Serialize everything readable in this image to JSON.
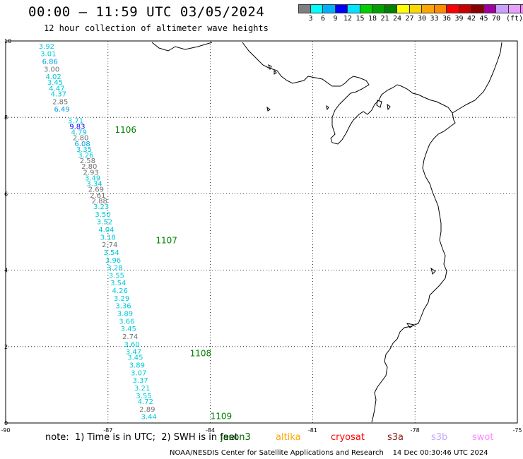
{
  "header": {
    "title": "00:00 – 11:59 UTC 03/05/2024",
    "subtitle": "12 hour collection of altimeter wave heights"
  },
  "colorbar": {
    "colors": [
      "#7f7f7f",
      "#00ffff",
      "#00b0ff",
      "#0000ff",
      "#00e4ff",
      "#00d000",
      "#00a000",
      "#008000",
      "#ffff00",
      "#ffd700",
      "#ffa500",
      "#ff8c00",
      "#ff0000",
      "#c80000",
      "#8b0000",
      "#a000a0",
      "#c8a0ff",
      "#e6a0ff",
      "#ff80ff",
      "#000000"
    ],
    "ticks": [
      "3",
      "6",
      "9",
      "12",
      "15",
      "18",
      "21",
      "24",
      "27",
      "30",
      "33",
      "36",
      "39",
      "42",
      "45",
      "70"
    ],
    "unit": "(ft)"
  },
  "map": {
    "xlim": [
      -90,
      -75
    ],
    "ylim": [
      0,
      10
    ],
    "x_ticks": [
      "-90",
      "-87",
      "-84",
      "-81",
      "-78",
      "-75"
    ],
    "y_ticks": [
      "0",
      "2",
      "4",
      "6",
      "8",
      "10"
    ],
    "grid": true,
    "track": {
      "points": [
        {
          "lon": -88.8,
          "lat": 9.8,
          "value": "3.92",
          "color": "#00c8d8"
        },
        {
          "lon": -88.75,
          "lat": 9.6,
          "value": "3.01",
          "color": "#00c8d8"
        },
        {
          "lon": -88.7,
          "lat": 9.4,
          "value": "6.86",
          "color": "#00a0e0"
        },
        {
          "lon": -88.65,
          "lat": 9.2,
          "value": "3.00",
          "color": "#707070"
        },
        {
          "lon": -88.6,
          "lat": 9.0,
          "value": "4.02",
          "color": "#00c8d8"
        },
        {
          "lon": -88.55,
          "lat": 8.85,
          "value": "3.45",
          "color": "#00c8d8"
        },
        {
          "lon": -88.5,
          "lat": 8.7,
          "value": "4.47",
          "color": "#00c8d8"
        },
        {
          "lon": -88.45,
          "lat": 8.55,
          "value": "4.37",
          "color": "#00c8d8"
        },
        {
          "lon": -88.4,
          "lat": 8.35,
          "value": "2.85",
          "color": "#707070"
        },
        {
          "lon": -88.35,
          "lat": 8.15,
          "value": "6.49",
          "color": "#00a0e0"
        },
        {
          "lon": -87.95,
          "lat": 7.85,
          "value": "3.71",
          "color": "#00c8d8"
        },
        {
          "lon": -87.9,
          "lat": 7.7,
          "value": "9.83",
          "color": "#0000ff"
        },
        {
          "lon": -87.85,
          "lat": 7.55,
          "value": "4.79",
          "color": "#00c8d8"
        },
        {
          "lon": -87.8,
          "lat": 7.4,
          "value": "2.80",
          "color": "#707070"
        },
        {
          "lon": -87.75,
          "lat": 7.25,
          "value": "6.08",
          "color": "#00a0e0"
        },
        {
          "lon": -87.7,
          "lat": 7.1,
          "value": "3.35",
          "color": "#00c8d8"
        },
        {
          "lon": -87.65,
          "lat": 6.95,
          "value": "3.26",
          "color": "#00c8d8"
        },
        {
          "lon": -87.6,
          "lat": 6.8,
          "value": "2.58",
          "color": "#707070"
        },
        {
          "lon": -87.55,
          "lat": 6.65,
          "value": "2.80",
          "color": "#707070"
        },
        {
          "lon": -87.5,
          "lat": 6.5,
          "value": "2.93",
          "color": "#707070"
        },
        {
          "lon": -87.45,
          "lat": 6.35,
          "value": "3.49",
          "color": "#00c8d8"
        },
        {
          "lon": -87.4,
          "lat": 6.2,
          "value": "3.34",
          "color": "#00c8d8"
        },
        {
          "lon": -87.35,
          "lat": 6.05,
          "value": "2.69",
          "color": "#707070"
        },
        {
          "lon": -87.3,
          "lat": 5.9,
          "value": "2.61",
          "color": "#707070"
        },
        {
          "lon": -87.25,
          "lat": 5.75,
          "value": "2.88",
          "color": "#707070"
        },
        {
          "lon": -87.2,
          "lat": 5.6,
          "value": "3.23",
          "color": "#00c8d8"
        },
        {
          "lon": -87.15,
          "lat": 5.4,
          "value": "3.50",
          "color": "#00c8d8"
        },
        {
          "lon": -87.1,
          "lat": 5.2,
          "value": "3.52",
          "color": "#00c8d8"
        },
        {
          "lon": -87.05,
          "lat": 5.0,
          "value": "4.04",
          "color": "#00c8d8"
        },
        {
          "lon": -87.0,
          "lat": 4.8,
          "value": "3.18",
          "color": "#00c8d8"
        },
        {
          "lon": -86.95,
          "lat": 4.6,
          "value": "2.74",
          "color": "#707070"
        },
        {
          "lon": -86.9,
          "lat": 4.4,
          "value": "3.54",
          "color": "#00c8d8"
        },
        {
          "lon": -86.85,
          "lat": 4.2,
          "value": "3.96",
          "color": "#00c8d8"
        },
        {
          "lon": -86.8,
          "lat": 4.0,
          "value": "3.28",
          "color": "#00c8d8"
        },
        {
          "lon": -86.75,
          "lat": 3.8,
          "value": "3.55",
          "color": "#00c8d8"
        },
        {
          "lon": -86.7,
          "lat": 3.6,
          "value": "3.54",
          "color": "#00c8d8"
        },
        {
          "lon": -86.65,
          "lat": 3.4,
          "value": "4.26",
          "color": "#00c8d8"
        },
        {
          "lon": -86.6,
          "lat": 3.2,
          "value": "3.29",
          "color": "#00c8d8"
        },
        {
          "lon": -86.55,
          "lat": 3.0,
          "value": "3.36",
          "color": "#00c8d8"
        },
        {
          "lon": -86.5,
          "lat": 2.8,
          "value": "3.89",
          "color": "#00c8d8"
        },
        {
          "lon": -86.45,
          "lat": 2.6,
          "value": "3.66",
          "color": "#00c8d8"
        },
        {
          "lon": -86.4,
          "lat": 2.4,
          "value": "3.45",
          "color": "#00c8d8"
        },
        {
          "lon": -86.35,
          "lat": 2.2,
          "value": "2.74",
          "color": "#707070"
        },
        {
          "lon": -86.3,
          "lat": 2.0,
          "value": "3.60",
          "color": "#00c8d8"
        },
        {
          "lon": -86.25,
          "lat": 1.8,
          "value": "3.47",
          "color": "#00c8d8"
        },
        {
          "lon": -86.2,
          "lat": 1.65,
          "value": "3.45",
          "color": "#00c8d8"
        },
        {
          "lon": -86.15,
          "lat": 1.45,
          "value": "3.89",
          "color": "#00c8d8"
        },
        {
          "lon": -86.1,
          "lat": 1.25,
          "value": "3.07",
          "color": "#00c8d8"
        },
        {
          "lon": -86.05,
          "lat": 1.05,
          "value": "3.37",
          "color": "#00c8d8"
        },
        {
          "lon": -86.0,
          "lat": 0.85,
          "value": "3.21",
          "color": "#00c8d8"
        },
        {
          "lon": -85.95,
          "lat": 0.65,
          "value": "3.55",
          "color": "#00c8d8"
        },
        {
          "lon": -85.9,
          "lat": 0.5,
          "value": "4.72",
          "color": "#00c8d8"
        },
        {
          "lon": -85.85,
          "lat": 0.3,
          "value": "2.89",
          "color": "#707070"
        },
        {
          "lon": -85.8,
          "lat": 0.1,
          "value": "3.44",
          "color": "#00c8d8"
        }
      ],
      "times": [
        {
          "lon": -86.8,
          "lat": 7.6,
          "label": "1106"
        },
        {
          "lon": -85.6,
          "lat": 4.7,
          "label": "1107"
        },
        {
          "lon": -84.6,
          "lat": 1.75,
          "label": "1108"
        },
        {
          "lon": -84.0,
          "lat": 0.1,
          "label": "1109"
        }
      ],
      "time_color": "#008000"
    }
  },
  "footer": {
    "note": "note:  1) Time is in UTC;  2) SWH is in feet",
    "legend": [
      {
        "label": "jason3",
        "color": "#006400"
      },
      {
        "label": "altika",
        "color": "#ffa500"
      },
      {
        "label": "cryosat",
        "color": "#ff0000"
      },
      {
        "label": "s3a",
        "color": "#8b1a1a"
      },
      {
        "label": "s3b",
        "color": "#c0a8ff"
      },
      {
        "label": "swot",
        "color": "#ff88ff"
      }
    ],
    "credit": "NOAA/NESDIS Center for Satellite Applications and Research    14 Dec 00:30:46 UTC 2024"
  }
}
